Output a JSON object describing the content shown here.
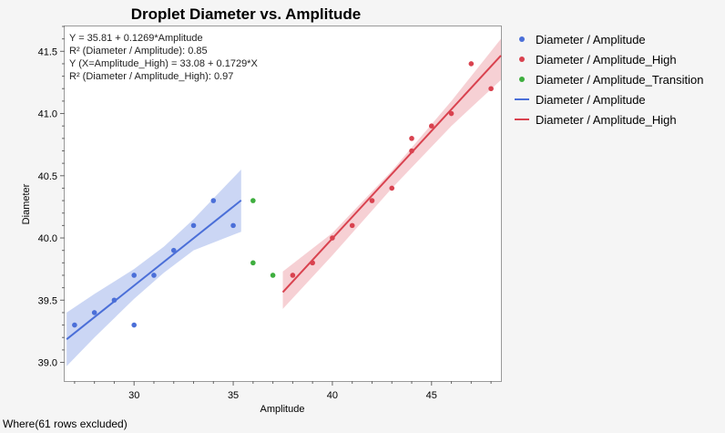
{
  "chart_data": {
    "type": "scatter",
    "title": "Droplet Diameter vs. Amplitude",
    "xlabel": "Amplitude",
    "ylabel": "Diameter",
    "xlim": [
      26.5,
      48.5
    ],
    "ylim": [
      38.85,
      41.7
    ],
    "x_ticks": [
      30,
      35,
      40,
      45
    ],
    "y_ticks": [
      39.0,
      39.5,
      40.0,
      40.5,
      41.0,
      41.5
    ],
    "grid": false,
    "legend_position": "right",
    "annotations": [
      "Y = 35.81 + 0.1269*Amplitude",
      "R² (Diameter / Amplitude): 0.85",
      "Y (X=Amplitude_High) = 33.08 + 0.1729*X",
      "R² (Diameter / Amplitude_High): 0.97"
    ],
    "series": [
      {
        "name": "Diameter / Amplitude",
        "kind": "points",
        "color": "#4b6fd8",
        "points": [
          [
            27,
            39.3
          ],
          [
            28,
            39.4
          ],
          [
            29,
            39.5
          ],
          [
            30,
            39.7
          ],
          [
            30,
            39.3
          ],
          [
            31,
            39.7
          ],
          [
            32,
            39.9
          ],
          [
            33,
            40.1
          ],
          [
            34,
            40.3
          ],
          [
            35,
            40.1
          ]
        ]
      },
      {
        "name": "Diameter / Amplitude_High",
        "kind": "points",
        "color": "#d9424f",
        "points": [
          [
            38,
            39.7
          ],
          [
            39,
            39.8
          ],
          [
            40,
            40.0
          ],
          [
            41,
            40.1
          ],
          [
            42,
            40.3
          ],
          [
            43,
            40.4
          ],
          [
            44,
            40.7
          ],
          [
            44,
            40.8
          ],
          [
            45,
            40.9
          ],
          [
            46,
            41.0
          ],
          [
            47,
            41.4
          ],
          [
            48,
            41.2
          ]
        ]
      },
      {
        "name": "Diameter / Amplitude_Transition",
        "kind": "points",
        "color": "#3eae3e",
        "points": [
          [
            36,
            40.3
          ],
          [
            36,
            39.8
          ],
          [
            37,
            39.7
          ]
        ]
      },
      {
        "name": "Diameter / Amplitude",
        "kind": "line",
        "color": "#4b6fd8",
        "band_color": "#b9c8f0",
        "intercept": 35.81,
        "slope": 0.1269,
        "x_range": [
          26.6,
          35.4
        ],
        "band": [
          [
            26.6,
            38.97,
            39.4
          ],
          [
            28,
            39.2,
            39.55
          ],
          [
            30,
            39.51,
            39.75
          ],
          [
            31.5,
            39.72,
            39.93
          ],
          [
            33,
            39.9,
            40.15
          ],
          [
            35.4,
            40.05,
            40.55
          ]
        ]
      },
      {
        "name": "Diameter / Amplitude_High",
        "kind": "line",
        "color": "#d9424f",
        "band_color": "#f3c0c6",
        "intercept": 33.08,
        "slope": 0.1729,
        "x_range": [
          37.5,
          48.5
        ],
        "band": [
          [
            37.5,
            39.43,
            39.73
          ],
          [
            40,
            39.86,
            40.04
          ],
          [
            43,
            40.4,
            40.54
          ],
          [
            46,
            40.9,
            41.1
          ],
          [
            48.5,
            41.27,
            41.6
          ]
        ]
      }
    ]
  },
  "legend": [
    {
      "label": "Diameter / Amplitude",
      "type": "dot",
      "color": "#4b6fd8"
    },
    {
      "label": "Diameter / Amplitude_High",
      "type": "dot",
      "color": "#d9424f"
    },
    {
      "label": "Diameter / Amplitude_Transition",
      "type": "dot",
      "color": "#3eae3e"
    },
    {
      "label": "Diameter / Amplitude",
      "type": "line",
      "color": "#4b6fd8"
    },
    {
      "label": "Diameter / Amplitude_High",
      "type": "line",
      "color": "#d9424f"
    }
  ],
  "footer": "Where(61 rows excluded)"
}
